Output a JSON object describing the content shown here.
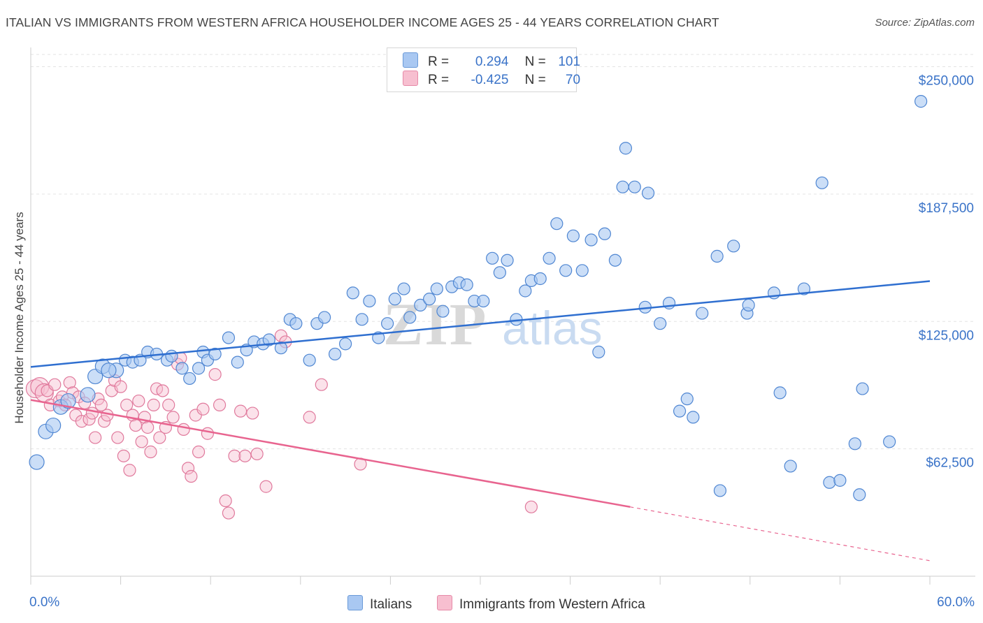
{
  "title": "ITALIAN VS IMMIGRANTS FROM WESTERN AFRICA HOUSEHOLDER INCOME AGES 25 - 44 YEARS CORRELATION CHART",
  "source": "Source: ZipAtlas.com",
  "watermark": {
    "zip": "ZIP",
    "atlas": "atlas"
  },
  "legend": {
    "rows": [
      {
        "r_label": "R =",
        "r_value": "0.294",
        "n_label": "N =",
        "n_value": "101",
        "color": "#a9c8f2",
        "border": "#6a9ad8"
      },
      {
        "r_label": "R =",
        "r_value": "-0.425",
        "n_label": "N =",
        "n_value": "70",
        "color": "#f7bfd0",
        "border": "#e68aa8"
      }
    ]
  },
  "bottom_legend": {
    "series1": "Italians",
    "series2": "Immigrants from Western Africa"
  },
  "colors": {
    "blue_fill": "#a9c8f2",
    "blue_stroke": "#4f86d2",
    "blue_line": "#2f6fd0",
    "pink_fill": "#f7bfd0",
    "pink_stroke": "#e0799c",
    "pink_line": "#e8648f",
    "tick_text": "#3a73c8",
    "grid": "#e3e3e3"
  },
  "chart_data": {
    "type": "scatter",
    "title": "ITALIAN VS IMMIGRANTS FROM WESTERN AFRICA HOUSEHOLDER INCOME AGES 25 - 44 YEARS CORRELATION CHART",
    "xlabel": "",
    "ylabel": "Householder Income Ages 25 - 44 years",
    "x_tick_labels": [
      "0.0%",
      "60.0%"
    ],
    "y_tick_labels": [
      "$62,500",
      "$125,000",
      "$187,500",
      "$250,000"
    ],
    "y_tick_values": [
      62500,
      125000,
      187500,
      250000
    ],
    "xlim": [
      0,
      60
    ],
    "ylim": [
      0,
      256000
    ],
    "grid": true,
    "legend_position": "top-center",
    "series": [
      {
        "name": "Italians",
        "regression": {
          "x": [
            0,
            60
          ],
          "y": [
            102700,
            144800
          ]
        },
        "points": [
          [
            0.4,
            56000
          ],
          [
            1.0,
            71000
          ],
          [
            1.5,
            74000
          ],
          [
            2.0,
            83000
          ],
          [
            2.5,
            86000
          ],
          [
            3.8,
            89000
          ],
          [
            4.3,
            98000
          ],
          [
            4.8,
            103000
          ],
          [
            5.7,
            101000
          ],
          [
            5.2,
            101000
          ],
          [
            6.3,
            106000
          ],
          [
            6.8,
            105000
          ],
          [
            7.3,
            106000
          ],
          [
            7.8,
            110000
          ],
          [
            8.4,
            109000
          ],
          [
            9.1,
            106000
          ],
          [
            9.4,
            108000
          ],
          [
            10.1,
            102000
          ],
          [
            10.6,
            97000
          ],
          [
            11.2,
            102000
          ],
          [
            11.5,
            110000
          ],
          [
            11.8,
            106000
          ],
          [
            12.3,
            109000
          ],
          [
            13.2,
            117000
          ],
          [
            13.8,
            105000
          ],
          [
            14.4,
            111000
          ],
          [
            14.9,
            115000
          ],
          [
            15.5,
            114000
          ],
          [
            15.9,
            116000
          ],
          [
            16.7,
            112000
          ],
          [
            17.3,
            126000
          ],
          [
            17.7,
            124000
          ],
          [
            18.6,
            106000
          ],
          [
            19.1,
            124000
          ],
          [
            19.6,
            127000
          ],
          [
            20.3,
            109000
          ],
          [
            21.0,
            114000
          ],
          [
            21.5,
            139000
          ],
          [
            22.1,
            126000
          ],
          [
            22.6,
            135000
          ],
          [
            23.2,
            117000
          ],
          [
            23.8,
            124000
          ],
          [
            24.3,
            136000
          ],
          [
            24.9,
            141000
          ],
          [
            25.3,
            127000
          ],
          [
            26.0,
            133000
          ],
          [
            26.6,
            136000
          ],
          [
            27.1,
            141000
          ],
          [
            27.5,
            130000
          ],
          [
            28.1,
            142000
          ],
          [
            28.6,
            144000
          ],
          [
            29.1,
            143000
          ],
          [
            29.6,
            135000
          ],
          [
            30.2,
            135000
          ],
          [
            30.8,
            156000
          ],
          [
            31.3,
            149000
          ],
          [
            31.8,
            155000
          ],
          [
            32.4,
            126000
          ],
          [
            33.0,
            140000
          ],
          [
            33.4,
            145000
          ],
          [
            34.0,
            146000
          ],
          [
            34.6,
            156000
          ],
          [
            35.1,
            173000
          ],
          [
            35.7,
            150000
          ],
          [
            36.2,
            167000
          ],
          [
            36.8,
            150000
          ],
          [
            37.4,
            165000
          ],
          [
            37.9,
            110000
          ],
          [
            38.3,
            168000
          ],
          [
            39.0,
            155000
          ],
          [
            39.5,
            191000
          ],
          [
            39.7,
            210000
          ],
          [
            40.3,
            191000
          ],
          [
            41.0,
            132000
          ],
          [
            41.2,
            188000
          ],
          [
            42.0,
            124000
          ],
          [
            42.6,
            134000
          ],
          [
            43.3,
            81000
          ],
          [
            43.8,
            87000
          ],
          [
            44.2,
            78000
          ],
          [
            44.8,
            129000
          ],
          [
            45.8,
            157000
          ],
          [
            46.0,
            42000
          ],
          [
            46.9,
            162000
          ],
          [
            47.8,
            129000
          ],
          [
            47.9,
            133000
          ],
          [
            49.6,
            139000
          ],
          [
            50.0,
            90000
          ],
          [
            50.7,
            54000
          ],
          [
            51.6,
            141000
          ],
          [
            52.8,
            193000
          ],
          [
            53.3,
            46000
          ],
          [
            54.0,
            47000
          ],
          [
            55.3,
            40000
          ],
          [
            55.5,
            92000
          ],
          [
            59.4,
            233000
          ],
          [
            55.0,
            65000
          ],
          [
            57.3,
            66000
          ]
        ]
      },
      {
        "name": "Immigrants from Western Africa",
        "regression": {
          "x": [
            0,
            40
          ],
          "y": [
            86500,
            34000
          ]
        },
        "regression_dashed": {
          "x": [
            40,
            60
          ],
          "y": [
            34000,
            7600
          ]
        },
        "points": [
          [
            0.3,
            92000
          ],
          [
            0.6,
            93000
          ],
          [
            0.9,
            90000
          ],
          [
            1.1,
            91000
          ],
          [
            1.3,
            84000
          ],
          [
            1.6,
            94000
          ],
          [
            1.9,
            86000
          ],
          [
            2.1,
            88000
          ],
          [
            2.3,
            84000
          ],
          [
            2.6,
            95000
          ],
          [
            2.8,
            90000
          ],
          [
            3.0,
            79000
          ],
          [
            3.2,
            88000
          ],
          [
            3.4,
            76000
          ],
          [
            3.6,
            85000
          ],
          [
            3.9,
            77000
          ],
          [
            4.1,
            80000
          ],
          [
            4.3,
            68000
          ],
          [
            4.5,
            87000
          ],
          [
            4.7,
            84000
          ],
          [
            4.9,
            76000
          ],
          [
            5.1,
            79000
          ],
          [
            5.4,
            91000
          ],
          [
            5.6,
            96000
          ],
          [
            5.8,
            68000
          ],
          [
            6.0,
            93000
          ],
          [
            6.2,
            59000
          ],
          [
            6.4,
            84000
          ],
          [
            6.6,
            52000
          ],
          [
            6.8,
            79000
          ],
          [
            7.0,
            74000
          ],
          [
            7.2,
            86000
          ],
          [
            7.4,
            66000
          ],
          [
            7.6,
            78000
          ],
          [
            7.8,
            73000
          ],
          [
            8.0,
            61000
          ],
          [
            8.2,
            84000
          ],
          [
            8.4,
            92000
          ],
          [
            8.6,
            68000
          ],
          [
            8.8,
            91000
          ],
          [
            9.0,
            73000
          ],
          [
            9.2,
            84000
          ],
          [
            9.5,
            78000
          ],
          [
            9.8,
            104000
          ],
          [
            10.0,
            107000
          ],
          [
            10.2,
            72000
          ],
          [
            10.5,
            53000
          ],
          [
            10.7,
            49000
          ],
          [
            11.0,
            79000
          ],
          [
            11.2,
            61000
          ],
          [
            11.5,
            82000
          ],
          [
            11.8,
            70000
          ],
          [
            12.3,
            99000
          ],
          [
            12.6,
            84000
          ],
          [
            13.0,
            37000
          ],
          [
            13.2,
            31000
          ],
          [
            13.6,
            59000
          ],
          [
            14.0,
            81000
          ],
          [
            14.3,
            59000
          ],
          [
            14.8,
            80000
          ],
          [
            15.1,
            60000
          ],
          [
            15.7,
            44000
          ],
          [
            16.7,
            118000
          ],
          [
            17.0,
            115000
          ],
          [
            18.6,
            78000
          ],
          [
            19.4,
            94000
          ],
          [
            22.0,
            55000
          ],
          [
            33.4,
            34000
          ]
        ]
      }
    ]
  }
}
